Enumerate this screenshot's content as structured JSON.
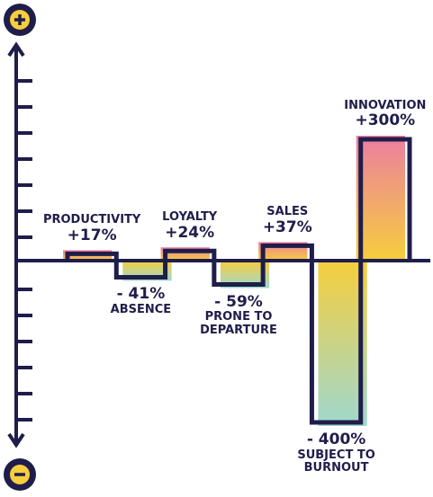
{
  "chart_data": {
    "type": "bar",
    "categories": [
      "PRODUCTIVITY",
      "ABSENCE",
      "LOYALTY",
      "PRONE TO DEPARTURE",
      "SALES",
      "SUBJECT TO BURNOUT",
      "INNOVATION"
    ],
    "values": [
      17,
      -41,
      24,
      -59,
      37,
      -400,
      300
    ],
    "value_labels": [
      "+17%",
      "- 41%",
      "+24%",
      "- 59%",
      "+37%",
      "- 400%",
      "+300%"
    ]
  }
}
